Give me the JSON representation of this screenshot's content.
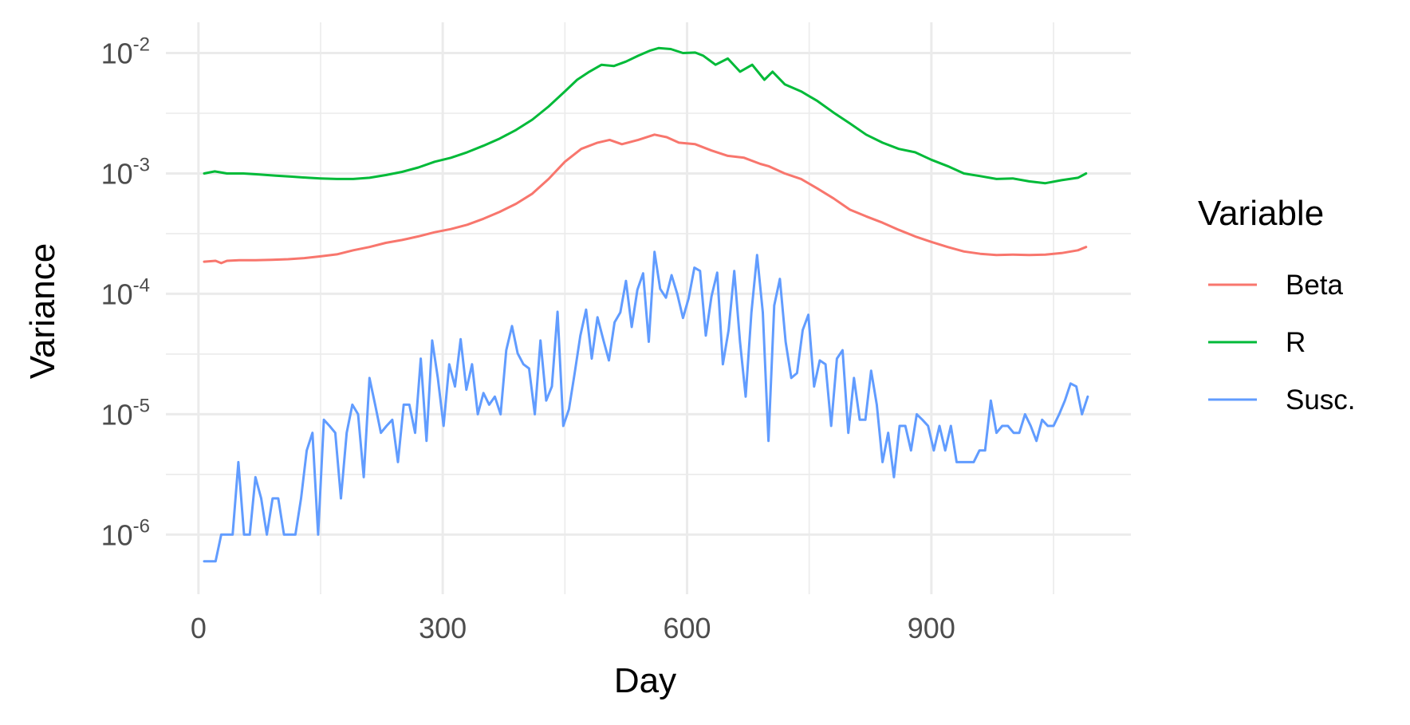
{
  "chart_data": {
    "type": "line",
    "xlabel": "Day",
    "ylabel": "Variance",
    "xlim": [
      -40,
      1145
    ],
    "ylim": [
      3.2e-07,
      0.018
    ],
    "yscale": "log10",
    "grid": true,
    "x_ticks": [
      0,
      300,
      600,
      900
    ],
    "x_tick_labels": [
      "0",
      "300",
      "600",
      "900"
    ],
    "y_ticks": [
      {
        "value": 1e-06,
        "base": "10",
        "exp": "-6"
      },
      {
        "value": 1e-05,
        "base": "10",
        "exp": "-5"
      },
      {
        "value": 0.0001,
        "base": "10",
        "exp": "-4"
      },
      {
        "value": 0.001,
        "base": "10",
        "exp": "-3"
      },
      {
        "value": 0.01,
        "base": "10",
        "exp": "-2"
      }
    ],
    "legend": {
      "title": "Variable",
      "position": "right"
    },
    "series": [
      {
        "name": "Beta",
        "color": "#F8766D",
        "points": [
          [
            7,
            0.000185
          ],
          [
            21,
            0.000188
          ],
          [
            28,
            0.00018
          ],
          [
            35,
            0.000188
          ],
          [
            50,
            0.00019
          ],
          [
            70,
            0.00019
          ],
          [
            90,
            0.000192
          ],
          [
            110,
            0.000194
          ],
          [
            130,
            0.000198
          ],
          [
            150,
            0.000205
          ],
          [
            170,
            0.000213
          ],
          [
            190,
            0.00023
          ],
          [
            210,
            0.000245
          ],
          [
            230,
            0.000265
          ],
          [
            250,
            0.00028
          ],
          [
            270,
            0.0003
          ],
          [
            290,
            0.000325
          ],
          [
            310,
            0.000345
          ],
          [
            330,
            0.000375
          ],
          [
            350,
            0.00042
          ],
          [
            370,
            0.00048
          ],
          [
            390,
            0.00056
          ],
          [
            410,
            0.00068
          ],
          [
            430,
            0.0009
          ],
          [
            450,
            0.00125
          ],
          [
            470,
            0.0016
          ],
          [
            490,
            0.0018
          ],
          [
            505,
            0.0019
          ],
          [
            520,
            0.00175
          ],
          [
            540,
            0.0019
          ],
          [
            560,
            0.0021
          ],
          [
            575,
            0.002
          ],
          [
            590,
            0.0018
          ],
          [
            610,
            0.00175
          ],
          [
            630,
            0.00155
          ],
          [
            650,
            0.0014
          ],
          [
            670,
            0.00135
          ],
          [
            690,
            0.0012
          ],
          [
            700,
            0.00115
          ],
          [
            720,
            0.001
          ],
          [
            740,
            0.0009
          ],
          [
            760,
            0.00075
          ],
          [
            780,
            0.00062
          ],
          [
            800,
            0.0005
          ],
          [
            820,
            0.00044
          ],
          [
            840,
            0.00039
          ],
          [
            860,
            0.00034
          ],
          [
            880,
            0.0003
          ],
          [
            900,
            0.00027
          ],
          [
            920,
            0.000245
          ],
          [
            940,
            0.000225
          ],
          [
            960,
            0.000215
          ],
          [
            980,
            0.00021
          ],
          [
            1000,
            0.000212
          ],
          [
            1020,
            0.00021
          ],
          [
            1040,
            0.000212
          ],
          [
            1060,
            0.000218
          ],
          [
            1080,
            0.00023
          ],
          [
            1090,
            0.000245
          ]
        ]
      },
      {
        "name": "R",
        "color": "#00BA38",
        "points": [
          [
            7,
            0.001
          ],
          [
            20,
            0.00104
          ],
          [
            35,
            0.001
          ],
          [
            55,
            0.001
          ],
          [
            75,
            0.00098
          ],
          [
            95,
            0.00096
          ],
          [
            115,
            0.00094
          ],
          [
            135,
            0.00092
          ],
          [
            150,
            0.00091
          ],
          [
            170,
            0.0009
          ],
          [
            190,
            0.0009
          ],
          [
            210,
            0.00092
          ],
          [
            230,
            0.00097
          ],
          [
            250,
            0.00103
          ],
          [
            270,
            0.00112
          ],
          [
            290,
            0.00125
          ],
          [
            310,
            0.00135
          ],
          [
            330,
            0.0015
          ],
          [
            350,
            0.0017
          ],
          [
            370,
            0.00195
          ],
          [
            390,
            0.0023
          ],
          [
            410,
            0.0028
          ],
          [
            430,
            0.0036
          ],
          [
            450,
            0.0048
          ],
          [
            465,
            0.006
          ],
          [
            480,
            0.007
          ],
          [
            495,
            0.008
          ],
          [
            510,
            0.0078
          ],
          [
            525,
            0.0085
          ],
          [
            540,
            0.0095
          ],
          [
            555,
            0.0105
          ],
          [
            565,
            0.011
          ],
          [
            580,
            0.0108
          ],
          [
            595,
            0.01
          ],
          [
            610,
            0.0101
          ],
          [
            620,
            0.0095
          ],
          [
            635,
            0.008
          ],
          [
            650,
            0.009
          ],
          [
            665,
            0.007
          ],
          [
            680,
            0.008
          ],
          [
            695,
            0.006
          ],
          [
            705,
            0.007
          ],
          [
            720,
            0.0055
          ],
          [
            740,
            0.0048
          ],
          [
            760,
            0.004
          ],
          [
            780,
            0.0032
          ],
          [
            800,
            0.0026
          ],
          [
            820,
            0.0021
          ],
          [
            840,
            0.0018
          ],
          [
            860,
            0.0016
          ],
          [
            880,
            0.0015
          ],
          [
            900,
            0.0013
          ],
          [
            920,
            0.00115
          ],
          [
            940,
            0.001
          ],
          [
            960,
            0.00095
          ],
          [
            980,
            0.0009
          ],
          [
            1000,
            0.00091
          ],
          [
            1020,
            0.00086
          ],
          [
            1040,
            0.00083
          ],
          [
            1060,
            0.00088
          ],
          [
            1080,
            0.00092
          ],
          [
            1090,
            0.001
          ]
        ]
      },
      {
        "name": "Susc.",
        "color": "#619CFF",
        "points": [
          [
            7,
            6e-07
          ],
          [
            14,
            6e-07
          ],
          [
            21,
            6e-07
          ],
          [
            28,
            1e-06
          ],
          [
            35,
            1e-06
          ],
          [
            42,
            1e-06
          ],
          [
            49,
            4e-06
          ],
          [
            56,
            1e-06
          ],
          [
            63,
            1e-06
          ],
          [
            70,
            3e-06
          ],
          [
            77,
            2e-06
          ],
          [
            84,
            1e-06
          ],
          [
            91,
            2e-06
          ],
          [
            98,
            2e-06
          ],
          [
            105,
            1e-06
          ],
          [
            112,
            1e-06
          ],
          [
            119,
            1e-06
          ],
          [
            126,
            2e-06
          ],
          [
            133,
            5e-06
          ],
          [
            140,
            7e-06
          ],
          [
            147,
            1e-06
          ],
          [
            154,
            9e-06
          ],
          [
            161,
            8e-06
          ],
          [
            168,
            7e-06
          ],
          [
            175,
            2e-06
          ],
          [
            182,
            7e-06
          ],
          [
            189,
            1.2e-05
          ],
          [
            196,
            1e-05
          ],
          [
            203,
            3e-06
          ],
          [
            210,
            2e-05
          ],
          [
            217,
            1.2e-05
          ],
          [
            224,
            7e-06
          ],
          [
            231,
            8e-06
          ],
          [
            238,
            9e-06
          ],
          [
            245,
            4e-06
          ],
          [
            252,
            1.2e-05
          ],
          [
            259,
            1.2e-05
          ],
          [
            266,
            7e-06
          ],
          [
            273,
            2.9e-05
          ],
          [
            280,
            6e-06
          ],
          [
            287,
            4.1e-05
          ],
          [
            294,
            2e-05
          ],
          [
            301,
            8e-06
          ],
          [
            308,
            2.6e-05
          ],
          [
            315,
            1.7e-05
          ],
          [
            322,
            4.2e-05
          ],
          [
            329,
            1.6e-05
          ],
          [
            336,
            2.6e-05
          ],
          [
            343,
            1e-05
          ],
          [
            350,
            1.5e-05
          ],
          [
            357,
            1.2e-05
          ],
          [
            364,
            1.4e-05
          ],
          [
            371,
            1e-05
          ],
          [
            378,
            3.4e-05
          ],
          [
            385,
            5.4e-05
          ],
          [
            392,
            3.2e-05
          ],
          [
            399,
            2.6e-05
          ],
          [
            406,
            2.4e-05
          ],
          [
            413,
            1e-05
          ],
          [
            420,
            4.1e-05
          ],
          [
            427,
            1.3e-05
          ],
          [
            434,
            1.7e-05
          ],
          [
            441,
            7.1e-05
          ],
          [
            448,
            8e-06
          ],
          [
            455,
            1.1e-05
          ],
          [
            462,
            2.2e-05
          ],
          [
            469,
            4.5e-05
          ],
          [
            476,
            7.4e-05
          ],
          [
            483,
            2.9e-05
          ],
          [
            490,
            6.4e-05
          ],
          [
            497,
            4.2e-05
          ],
          [
            504,
            2.8e-05
          ],
          [
            511,
            5.8e-05
          ],
          [
            518,
            7e-05
          ],
          [
            525,
            0.000128
          ],
          [
            532,
            5.3e-05
          ],
          [
            539,
            0.000108
          ],
          [
            546,
            0.000148
          ],
          [
            553,
            4e-05
          ],
          [
            560,
            0.000223
          ],
          [
            567,
            0.00011
          ],
          [
            574,
            9.3e-05
          ],
          [
            581,
            0.000143
          ],
          [
            588,
            0.0001
          ],
          [
            595,
            6.3e-05
          ],
          [
            602,
            9.2e-05
          ],
          [
            609,
            0.000165
          ],
          [
            616,
            0.000155
          ],
          [
            623,
            4.5e-05
          ],
          [
            630,
            9.5e-05
          ],
          [
            637,
            0.00015
          ],
          [
            644,
            2.6e-05
          ],
          [
            651,
            5e-05
          ],
          [
            658,
            0.000155
          ],
          [
            665,
            4e-05
          ],
          [
            672,
            1.4e-05
          ],
          [
            679,
            7e-05
          ],
          [
            686,
            0.00021
          ],
          [
            693,
            7e-05
          ],
          [
            700,
            6e-06
          ],
          [
            707,
            8e-05
          ],
          [
            714,
            0.000133
          ],
          [
            721,
            4e-05
          ],
          [
            728,
            2e-05
          ],
          [
            735,
            2.2e-05
          ],
          [
            742,
            5e-05
          ],
          [
            749,
            6.7e-05
          ],
          [
            756,
            1.7e-05
          ],
          [
            763,
            2.8e-05
          ],
          [
            770,
            2.6e-05
          ],
          [
            777,
            8e-06
          ],
          [
            784,
            2.9e-05
          ],
          [
            791,
            3.4e-05
          ],
          [
            798,
            7e-06
          ],
          [
            805,
            2e-05
          ],
          [
            812,
            9e-06
          ],
          [
            819,
            9e-06
          ],
          [
            826,
            2.3e-05
          ],
          [
            833,
            1.2e-05
          ],
          [
            840,
            4e-06
          ],
          [
            847,
            7e-06
          ],
          [
            854,
            3e-06
          ],
          [
            861,
            8e-06
          ],
          [
            868,
            8e-06
          ],
          [
            875,
            5e-06
          ],
          [
            882,
            1e-05
          ],
          [
            889,
            9e-06
          ],
          [
            896,
            8e-06
          ],
          [
            903,
            5e-06
          ],
          [
            910,
            8e-06
          ],
          [
            917,
            5e-06
          ],
          [
            924,
            8e-06
          ],
          [
            931,
            4e-06
          ],
          [
            938,
            4e-06
          ],
          [
            945,
            4e-06
          ],
          [
            952,
            4e-06
          ],
          [
            959,
            5e-06
          ],
          [
            966,
            5e-06
          ],
          [
            973,
            1.3e-05
          ],
          [
            980,
            7e-06
          ],
          [
            987,
            8e-06
          ],
          [
            994,
            8e-06
          ],
          [
            1001,
            7e-06
          ],
          [
            1008,
            7e-06
          ],
          [
            1015,
            1e-05
          ],
          [
            1022,
            8e-06
          ],
          [
            1029,
            6e-06
          ],
          [
            1036,
            9e-06
          ],
          [
            1043,
            8e-06
          ],
          [
            1050,
            8e-06
          ],
          [
            1057,
            1e-05
          ],
          [
            1064,
            1.3e-05
          ],
          [
            1071,
            1.8e-05
          ],
          [
            1078,
            1.7e-05
          ],
          [
            1085,
            1e-05
          ],
          [
            1092,
            1.4e-05
          ]
        ]
      }
    ]
  }
}
